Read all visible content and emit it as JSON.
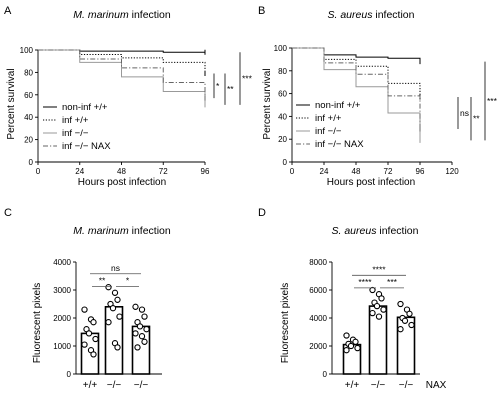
{
  "panels": {
    "A": {
      "letter": "A",
      "title_italic": "M. marinum",
      "title_rest": " infection",
      "chart_data": {
        "type": "line",
        "subtype": "survival-step",
        "xlabel": "Hours post infection",
        "ylabel": "Percent survival",
        "xlim": [
          0,
          96
        ],
        "ylim": [
          0,
          100
        ],
        "xticks": [
          0,
          24,
          48,
          72,
          96
        ],
        "yticks": [
          0,
          20,
          40,
          60,
          80,
          100
        ],
        "series": [
          {
            "name": "non-inf +/+",
            "style": "solid",
            "color": "#000000",
            "x": [
              0,
              24,
              48,
              72,
              96
            ],
            "y": [
              100,
              99,
              99,
              98,
              98
            ]
          },
          {
            "name": "inf +/+",
            "style": "dotted",
            "color": "#000000",
            "x": [
              0,
              24,
              48,
              72,
              96
            ],
            "y": [
              100,
              96,
              93,
              89,
              79
            ]
          },
          {
            "name": "inf −/−",
            "style": "solid",
            "color": "#999999",
            "x": [
              0,
              24,
              48,
              72,
              96
            ],
            "y": [
              100,
              89,
              76,
              63,
              51
            ]
          },
          {
            "name": "inf −/−  NAX",
            "style": "dashdot",
            "color": "#666666",
            "x": [
              0,
              24,
              48,
              72,
              96
            ],
            "y": [
              100,
              92,
              84,
              71,
              57
            ]
          }
        ],
        "significance": [
          {
            "label": "*",
            "y_range": [
              57,
              79
            ]
          },
          {
            "label": "**",
            "y_range": [
              51,
              79
            ]
          },
          {
            "label": "***",
            "y_range": [
              51,
              98
            ]
          }
        ]
      }
    },
    "B": {
      "letter": "B",
      "title_italic": "S. aureus",
      "title_rest": " infection",
      "chart_data": {
        "type": "line",
        "subtype": "survival-step",
        "xlabel": "Hours post infection",
        "ylabel": "Percent survival",
        "xlim": [
          0,
          120
        ],
        "ylim": [
          0,
          100
        ],
        "xticks": [
          0,
          24,
          48,
          72,
          96,
          120
        ],
        "yticks": [
          0,
          20,
          40,
          60,
          80,
          100
        ],
        "series": [
          {
            "name": "non-inf +/+",
            "style": "solid",
            "color": "#000000",
            "x": [
              0,
              24,
              48,
              72,
              96
            ],
            "y": [
              100,
              94,
              92,
              91,
              88
            ]
          },
          {
            "name": "inf +/+",
            "style": "dotted",
            "color": "#000000",
            "x": [
              0,
              24,
              48,
              72,
              96
            ],
            "y": [
              100,
              90,
              84,
              69,
              57
            ]
          },
          {
            "name": "inf −/−",
            "style": "solid",
            "color": "#999999",
            "x": [
              0,
              24,
              48,
              72,
              96
            ],
            "y": [
              100,
              81,
              66,
              43,
              19
            ]
          },
          {
            "name": "inf −/−  NAX",
            "style": "dashdot",
            "color": "#666666",
            "x": [
              0,
              24,
              48,
              72,
              96
            ],
            "y": [
              100,
              87,
              77,
              58,
              29
            ]
          }
        ],
        "significance": [
          {
            "label": "ns",
            "y_range": [
              29,
              57
            ]
          },
          {
            "label": "**",
            "y_range": [
              19,
              57
            ]
          },
          {
            "label": "***",
            "y_range": [
              19,
              88
            ]
          }
        ]
      }
    },
    "C": {
      "letter": "C",
      "title_italic": "M. marinum",
      "title_rest": " infection",
      "chart_data": {
        "type": "bar",
        "ylabel": "Fluorescent pixels",
        "ylim": [
          0,
          4000
        ],
        "yticks": [
          0,
          1000,
          2000,
          3000,
          4000
        ],
        "categories": [
          "+/+",
          "−/−",
          "−/−"
        ],
        "extra_label": "",
        "values": [
          1450,
          2400,
          1700
        ],
        "points": [
          [
            2300,
            1950,
            1850,
            1600,
            1450,
            1250,
            1050,
            850,
            700
          ],
          [
            3100,
            2900,
            2650,
            2500,
            2350,
            2050,
            1850,
            1100,
            950
          ],
          [
            2400,
            2300,
            2050,
            1850,
            1700,
            1600,
            1450,
            1350,
            1150,
            950
          ]
        ],
        "significance": [
          {
            "label": "ns",
            "from": 0,
            "to": 2,
            "y": 3580
          },
          {
            "label": "**",
            "from": 0,
            "to": 1,
            "y": 3130
          },
          {
            "label": "*",
            "from": 1,
            "to": 2,
            "y": 3130
          }
        ]
      }
    },
    "D": {
      "letter": "D",
      "title_italic": "S. aureus",
      "title_rest": " infection",
      "chart_data": {
        "type": "bar",
        "ylabel": "Fluorescent pixels",
        "ylim": [
          0,
          8000
        ],
        "yticks": [
          0,
          2000,
          4000,
          6000,
          8000
        ],
        "categories": [
          "+/+",
          "−/−",
          "−/−"
        ],
        "extra_label": "NAX",
        "values": [
          2100,
          4850,
          4050
        ],
        "points": [
          [
            2750,
            2450,
            2300,
            2150,
            2000,
            1850,
            1700
          ],
          [
            6000,
            5700,
            5400,
            5100,
            4850,
            4600,
            4350,
            4100
          ],
          [
            5000,
            4600,
            4300,
            4000,
            3800,
            3500,
            3200
          ]
        ],
        "significance": [
          {
            "label": "****",
            "from": 0,
            "to": 2,
            "y": 7050
          },
          {
            "label": "****",
            "from": 0,
            "to": 1,
            "y": 6150
          },
          {
            "label": "***",
            "from": 1,
            "to": 2,
            "y": 6150
          }
        ]
      }
    }
  }
}
